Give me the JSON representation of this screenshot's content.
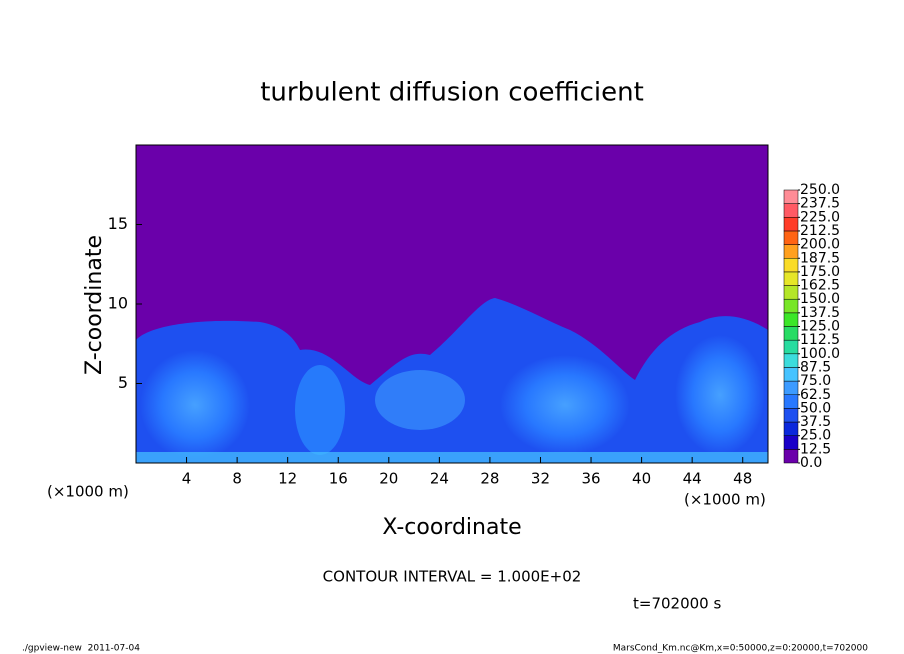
{
  "chart_data": {
    "type": "contour",
    "title": "turbulent diffusion coefficient",
    "x_label": "X-coordinate",
    "y_label": "Z-coordinate",
    "x_unit_label": "(×1000 m)",
    "xlim": [
      0,
      50
    ],
    "xticks": [
      4,
      8,
      12,
      16,
      20,
      24,
      28,
      32,
      36,
      40,
      44,
      48
    ],
    "ylim": [
      0,
      20
    ],
    "yticks": [
      5,
      10,
      15
    ],
    "colorbar": {
      "levels": [
        {
          "value": 0,
          "label": "0.0"
        },
        {
          "value": 12.5,
          "label": "12.5"
        },
        {
          "value": 25,
          "label": "25.0"
        },
        {
          "value": 37.5,
          "label": "37.5"
        },
        {
          "value": 50,
          "label": "50.0"
        },
        {
          "value": 62.5,
          "label": "62.5"
        },
        {
          "value": 75,
          "label": "75.0"
        },
        {
          "value": 87.5,
          "label": "87.5"
        },
        {
          "value": 100,
          "label": "100.0"
        },
        {
          "value": 112.5,
          "label": "112.5"
        },
        {
          "value": 125,
          "label": "125.0"
        },
        {
          "value": 137.5,
          "label": "137.5"
        },
        {
          "value": 150,
          "label": "150.0"
        },
        {
          "value": 162.5,
          "label": "162.5"
        },
        {
          "value": 175,
          "label": "175.0"
        },
        {
          "value": 187.5,
          "label": "187.5"
        },
        {
          "value": 200,
          "label": "200.0"
        },
        {
          "value": 212.5,
          "label": "212.5"
        },
        {
          "value": 225,
          "label": "225.0"
        },
        {
          "value": 237.5,
          "label": "237.5"
        },
        {
          "value": 250,
          "label": "250.0"
        }
      ],
      "colors": [
        "#6a00aa",
        "#1a00c8",
        "#0a28dc",
        "#1e50f0",
        "#2878ff",
        "#3c9bff",
        "#46c3ff",
        "#3cdcdc",
        "#28dca0",
        "#28dc64",
        "#3ce628",
        "#78e628",
        "#b4e628",
        "#e6e628",
        "#fadc28",
        "#ffa01e",
        "#ff6414",
        "#ff3c28",
        "#ff5a64",
        "#ff8c96"
      ]
    },
    "contour_interval": "CONTOUR INTERVAL = 1.000E+02",
    "time_label": "t=702000 s",
    "footer_left": "./gpview-new  2011-07-04",
    "footer_right": "MarsCond_Km.nc@Km,x=0:50000,z=0:20000,t=702000"
  }
}
